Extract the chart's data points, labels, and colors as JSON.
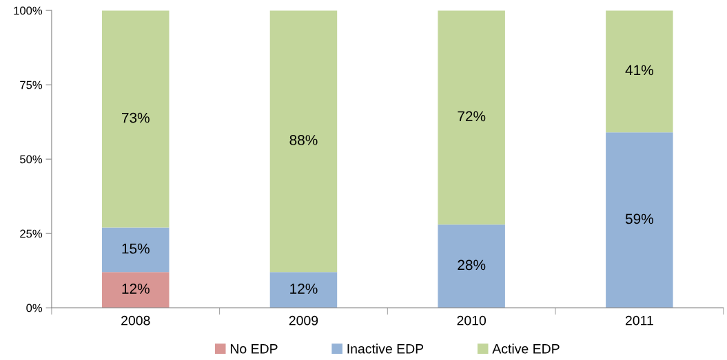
{
  "chart_data": {
    "type": "bar",
    "stacked": true,
    "categories": [
      "2008",
      "2009",
      "2010",
      "2011"
    ],
    "series": [
      {
        "name": "No EDP",
        "color": "#d99694",
        "values": [
          12,
          null,
          null,
          null
        ],
        "value_labels": [
          "12%",
          null,
          null,
          null
        ]
      },
      {
        "name": "Inactive EDP",
        "color": "#95b3d7",
        "values": [
          15,
          12,
          28,
          59
        ],
        "value_labels": [
          "15%",
          "12%",
          "28%",
          "59%"
        ]
      },
      {
        "name": "Active EDP",
        "color": "#c3d69b",
        "values": [
          73,
          88,
          72,
          41
        ],
        "value_labels": [
          "73%",
          "88%",
          "72%",
          "41%"
        ]
      }
    ],
    "ylim": [
      0,
      100
    ],
    "yticks": [
      {
        "value": 0,
        "label": "0%"
      },
      {
        "value": 25,
        "label": "25%"
      },
      {
        "value": 50,
        "label": "50%"
      },
      {
        "value": 75,
        "label": "75%"
      },
      {
        "value": 100,
        "label": "100%"
      }
    ],
    "grid": false,
    "legend": "bottom"
  }
}
